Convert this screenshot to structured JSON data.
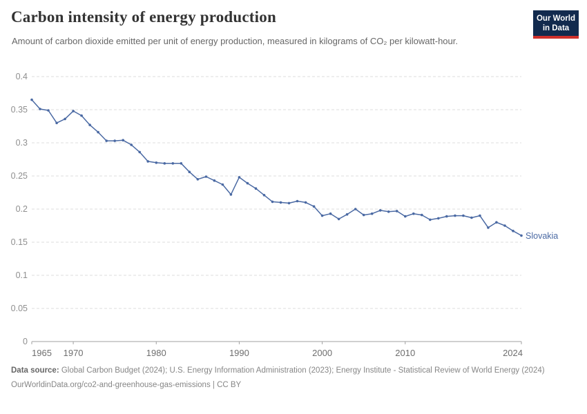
{
  "header": {
    "title": "Carbon intensity of energy production",
    "subtitle": "Amount of carbon dioxide emitted per unit of energy production, measured in kilograms of CO₂ per kilowatt-hour."
  },
  "logo": {
    "line1": "Our World",
    "line2": "in Data",
    "bg_color": "#122a4e",
    "accent_color": "#cf302b"
  },
  "chart_data": {
    "type": "line",
    "title": "Carbon intensity of energy production",
    "unit": "kilograms of CO₂ per kilowatt-hour",
    "xlim": [
      1965,
      2024
    ],
    "ylim": [
      0,
      0.4
    ],
    "grid": "horizontal-dashed",
    "legend_position": "end-of-line-label",
    "xticks": [
      1965,
      1970,
      1980,
      1990,
      2000,
      2010,
      2024
    ],
    "yticks": [
      0,
      0.05,
      0.1,
      0.15,
      0.2,
      0.25,
      0.3,
      0.35,
      0.4
    ],
    "ytick_labels": [
      "0",
      "0.05",
      "0.1",
      "0.15",
      "0.2",
      "0.25",
      "0.3",
      "0.35",
      "0.4"
    ],
    "x": [
      1965,
      1966,
      1967,
      1968,
      1969,
      1970,
      1971,
      1972,
      1973,
      1974,
      1975,
      1976,
      1977,
      1978,
      1979,
      1980,
      1981,
      1982,
      1983,
      1984,
      1985,
      1986,
      1987,
      1988,
      1989,
      1990,
      1991,
      1992,
      1993,
      1994,
      1995,
      1996,
      1997,
      1998,
      1999,
      2000,
      2001,
      2002,
      2003,
      2004,
      2005,
      2006,
      2007,
      2008,
      2009,
      2010,
      2011,
      2012,
      2013,
      2014,
      2015,
      2016,
      2017,
      2018,
      2019,
      2020,
      2021,
      2022,
      2023,
      2024
    ],
    "series": [
      {
        "name": "Slovakia",
        "color": "#4a69a3",
        "values": [
          0.365,
          0.351,
          0.349,
          0.33,
          0.336,
          0.348,
          0.341,
          0.327,
          0.316,
          0.303,
          0.303,
          0.304,
          0.297,
          0.286,
          0.272,
          0.27,
          0.269,
          0.269,
          0.269,
          0.256,
          0.245,
          0.249,
          0.243,
          0.237,
          0.222,
          0.248,
          0.239,
          0.231,
          0.221,
          0.211,
          0.21,
          0.209,
          0.212,
          0.21,
          0.204,
          0.19,
          0.193,
          0.185,
          0.192,
          0.2,
          0.191,
          0.193,
          0.198,
          0.196,
          0.197,
          0.189,
          0.193,
          0.191,
          0.184,
          0.186,
          0.189,
          0.19,
          0.19,
          0.187,
          0.19,
          0.172,
          0.18,
          0.175,
          0.167,
          0.16
        ]
      }
    ],
    "axis_colors": {
      "gridline": "#dcdcdc",
      "axis_line": "#a1a1a1",
      "ytick_label": "#8f8f8f",
      "xtick_label": "#6e6e6e"
    }
  },
  "footer": {
    "datasource_label": "Data source:",
    "datasource_text": " Global Carbon Budget (2024); U.S. Energy Information Administration (2023); Energy Institute - Statistical Review of World Energy (2024)",
    "link_line": "OurWorldinData.org/co2-and-greenhouse-gas-emissions | CC BY"
  }
}
